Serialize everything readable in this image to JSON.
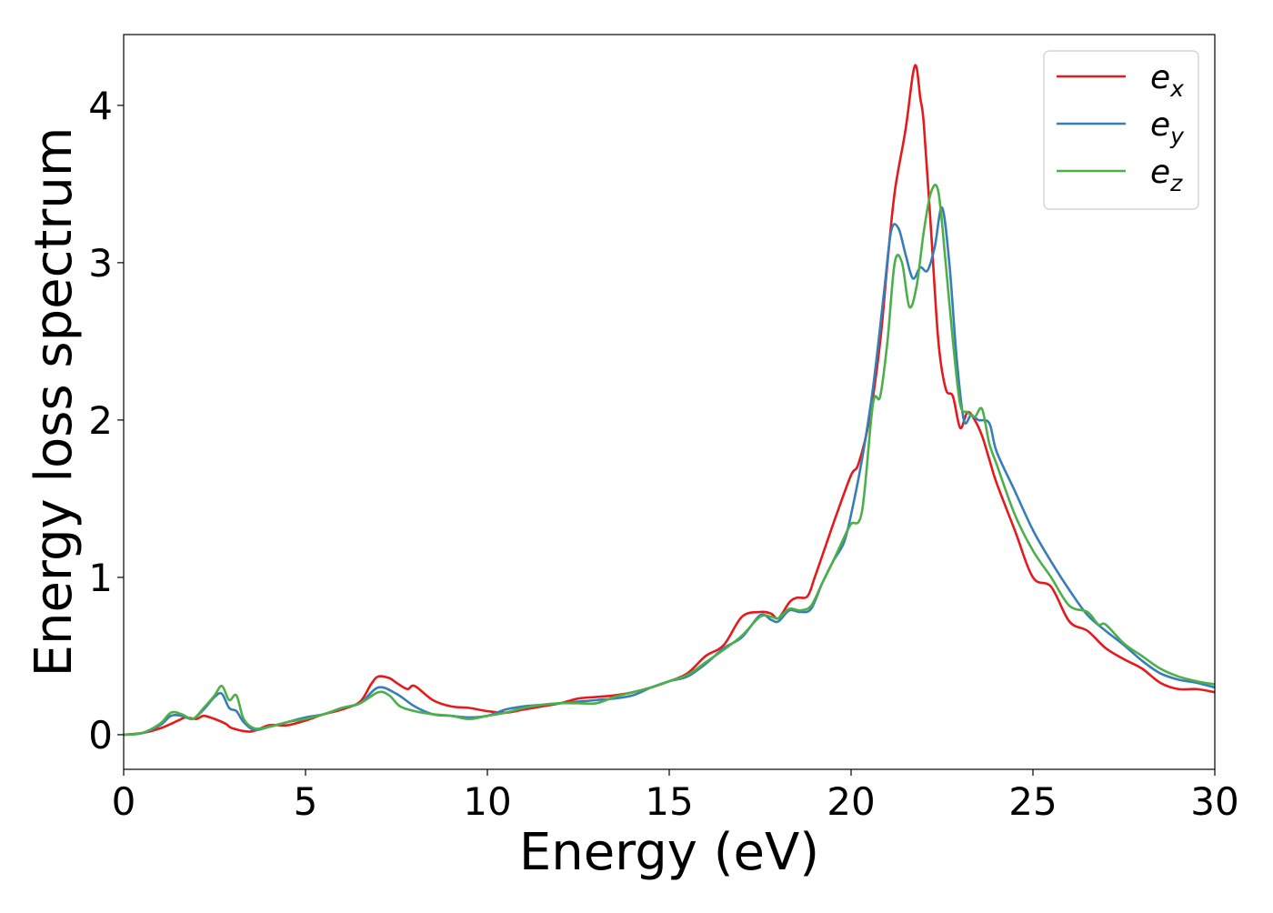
{
  "chart_data": {
    "type": "line",
    "title": "",
    "xlabel": "Energy (eV)",
    "ylabel": "Energy loss spectrum",
    "xlim": [
      0,
      30
    ],
    "ylim": [
      -0.22,
      4.45
    ],
    "xticks": [
      0,
      5,
      10,
      15,
      20,
      25,
      30
    ],
    "yticks": [
      0,
      1,
      2,
      3,
      4
    ],
    "grid": false,
    "legend_position": "top-right",
    "series": [
      {
        "name": "e_x",
        "label_base": "e",
        "label_sub": "x",
        "color": "#e41a1c",
        "x": [
          0,
          0.5,
          1.0,
          1.5,
          1.7,
          2.0,
          2.2,
          2.5,
          2.8,
          3.0,
          3.5,
          4.0,
          4.5,
          5.0,
          5.5,
          6.0,
          6.5,
          6.8,
          7.0,
          7.3,
          7.5,
          7.8,
          8.0,
          8.5,
          9.0,
          9.5,
          10.0,
          10.5,
          11.0,
          11.5,
          12.0,
          12.5,
          13.0,
          13.5,
          14.0,
          14.5,
          15.0,
          15.5,
          16.0,
          16.5,
          17.0,
          17.5,
          17.8,
          18.0,
          18.3,
          18.5,
          18.8,
          19.0,
          19.3,
          19.6,
          20.0,
          20.2,
          20.5,
          20.8,
          21.0,
          21.2,
          21.5,
          21.7,
          21.8,
          21.9,
          22.0,
          22.2,
          22.4,
          22.6,
          22.8,
          23.0,
          23.2,
          23.4,
          23.6,
          23.8,
          24.0,
          24.5,
          25.0,
          25.5,
          26.0,
          26.5,
          27.0,
          27.5,
          28.0,
          28.5,
          29.0,
          29.5,
          30.0
        ],
        "y": [
          0.0,
          0.01,
          0.04,
          0.09,
          0.11,
          0.1,
          0.12,
          0.1,
          0.07,
          0.04,
          0.02,
          0.06,
          0.06,
          0.09,
          0.13,
          0.16,
          0.21,
          0.32,
          0.37,
          0.36,
          0.33,
          0.29,
          0.31,
          0.22,
          0.18,
          0.17,
          0.15,
          0.14,
          0.16,
          0.18,
          0.2,
          0.23,
          0.24,
          0.25,
          0.27,
          0.3,
          0.34,
          0.39,
          0.5,
          0.57,
          0.75,
          0.78,
          0.77,
          0.74,
          0.84,
          0.87,
          0.88,
          1.0,
          1.2,
          1.4,
          1.65,
          1.72,
          2.0,
          2.5,
          3.0,
          3.45,
          3.85,
          4.2,
          4.24,
          4.05,
          3.88,
          3.2,
          2.5,
          2.2,
          2.15,
          1.95,
          2.05,
          2.0,
          1.9,
          1.75,
          1.6,
          1.3,
          1.0,
          0.94,
          0.72,
          0.66,
          0.55,
          0.48,
          0.42,
          0.33,
          0.29,
          0.29,
          0.27
        ]
      },
      {
        "name": "e_y",
        "label_base": "e",
        "label_sub": "y",
        "color": "#377eb8",
        "x": [
          0,
          0.5,
          1.0,
          1.3,
          1.6,
          1.9,
          2.2,
          2.5,
          2.7,
          2.9,
          3.1,
          3.3,
          3.6,
          4.0,
          4.5,
          5.0,
          5.5,
          6.0,
          6.5,
          7.0,
          7.5,
          8.0,
          8.5,
          9.0,
          9.5,
          10.0,
          10.5,
          11.0,
          11.5,
          12.0,
          12.5,
          13.0,
          13.5,
          14.0,
          14.5,
          15.0,
          15.5,
          16.0,
          16.5,
          17.0,
          17.5,
          17.8,
          18.0,
          18.3,
          18.6,
          18.9,
          19.2,
          19.5,
          19.8,
          20.0,
          20.3,
          20.6,
          20.9,
          21.1,
          21.3,
          21.5,
          21.7,
          21.9,
          22.1,
          22.3,
          22.5,
          22.7,
          22.9,
          23.1,
          23.3,
          23.5,
          23.8,
          24.0,
          24.5,
          25.0,
          25.5,
          26.0,
          26.5,
          27.0,
          27.5,
          28.0,
          28.5,
          29.0,
          29.5,
          30.0
        ],
        "y": [
          0.0,
          0.01,
          0.06,
          0.12,
          0.12,
          0.1,
          0.16,
          0.24,
          0.26,
          0.17,
          0.15,
          0.08,
          0.03,
          0.05,
          0.08,
          0.11,
          0.13,
          0.17,
          0.2,
          0.3,
          0.26,
          0.18,
          0.13,
          0.12,
          0.11,
          0.12,
          0.16,
          0.18,
          0.19,
          0.2,
          0.21,
          0.22,
          0.23,
          0.25,
          0.3,
          0.34,
          0.37,
          0.45,
          0.55,
          0.62,
          0.76,
          0.73,
          0.72,
          0.79,
          0.78,
          0.8,
          0.96,
          1.1,
          1.22,
          1.4,
          1.75,
          2.2,
          2.8,
          3.2,
          3.22,
          3.05,
          2.9,
          2.97,
          2.95,
          3.1,
          3.35,
          3.0,
          2.4,
          2.0,
          2.03,
          2.0,
          1.98,
          1.8,
          1.55,
          1.3,
          1.1,
          0.92,
          0.76,
          0.66,
          0.57,
          0.47,
          0.39,
          0.35,
          0.33,
          0.3
        ]
      },
      {
        "name": "e_z",
        "label_base": "e",
        "label_sub": "z",
        "color": "#4daf4a",
        "x": [
          0,
          0.5,
          1.0,
          1.3,
          1.6,
          1.9,
          2.2,
          2.5,
          2.7,
          2.9,
          3.1,
          3.3,
          3.6,
          4.0,
          4.5,
          5.0,
          5.5,
          6.0,
          6.5,
          7.0,
          7.3,
          7.6,
          8.0,
          8.5,
          9.0,
          9.5,
          10.0,
          10.5,
          11.0,
          11.5,
          12.0,
          12.5,
          13.0,
          13.5,
          14.0,
          14.5,
          15.0,
          15.5,
          16.0,
          16.5,
          17.0,
          17.5,
          17.8,
          18.0,
          18.3,
          18.6,
          18.9,
          19.2,
          19.5,
          19.8,
          20.0,
          20.3,
          20.6,
          20.8,
          21.0,
          21.2,
          21.4,
          21.6,
          21.8,
          22.0,
          22.2,
          22.4,
          22.6,
          22.8,
          23.0,
          23.2,
          23.4,
          23.6,
          23.8,
          24.0,
          24.5,
          25.0,
          25.5,
          26.0,
          26.5,
          26.8,
          27.0,
          27.5,
          28.0,
          28.5,
          29.0,
          29.5,
          30.0
        ],
        "y": [
          0.0,
          0.01,
          0.07,
          0.14,
          0.13,
          0.1,
          0.17,
          0.25,
          0.31,
          0.22,
          0.25,
          0.1,
          0.04,
          0.05,
          0.08,
          0.1,
          0.13,
          0.17,
          0.2,
          0.27,
          0.25,
          0.18,
          0.15,
          0.13,
          0.12,
          0.1,
          0.12,
          0.14,
          0.17,
          0.19,
          0.2,
          0.2,
          0.2,
          0.24,
          0.27,
          0.3,
          0.34,
          0.38,
          0.46,
          0.54,
          0.63,
          0.75,
          0.75,
          0.74,
          0.8,
          0.79,
          0.82,
          0.96,
          1.1,
          1.25,
          1.34,
          1.42,
          2.1,
          2.15,
          2.5,
          3.0,
          3.0,
          2.72,
          2.85,
          3.2,
          3.45,
          3.45,
          3.0,
          2.5,
          2.1,
          2.05,
          2.02,
          2.07,
          1.85,
          1.72,
          1.4,
          1.17,
          1.0,
          0.82,
          0.78,
          0.7,
          0.7,
          0.58,
          0.5,
          0.42,
          0.37,
          0.34,
          0.32
        ]
      }
    ]
  }
}
